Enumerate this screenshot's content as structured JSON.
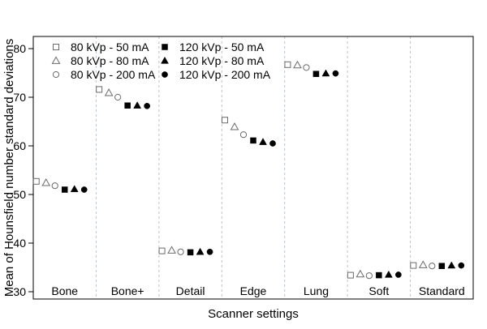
{
  "chart_data": {
    "type": "scatter",
    "xlabel": "Scanner settings",
    "ylabel": "Mean of Hounsfield number standard deviations",
    "ylim": [
      28.5,
      82.5
    ],
    "yticks": [
      30,
      40,
      50,
      60,
      70,
      80
    ],
    "categories": [
      "Bone",
      "Bone+",
      "Detail",
      "Edge",
      "Lung",
      "Soft",
      "Standard"
    ],
    "legend_position": "top-left",
    "series": [
      {
        "name": "80 kVp - 50 mA",
        "marker": "square-open",
        "values": [
          52.7,
          71.6,
          38.4,
          65.3,
          76.7,
          33.4,
          35.4
        ]
      },
      {
        "name": "80 kVp - 80 mA",
        "marker": "triangle-open",
        "values": [
          52.4,
          70.9,
          38.5,
          63.9,
          76.6,
          33.6,
          35.5
        ]
      },
      {
        "name": "80 kVp - 200 mA",
        "marker": "circle-open",
        "values": [
          51.8,
          70.0,
          38.2,
          62.3,
          76.1,
          33.3,
          35.3
        ]
      },
      {
        "name": "120 kVp - 50 mA",
        "marker": "square-filled",
        "values": [
          51.0,
          68.3,
          38.1,
          61.1,
          74.8,
          33.4,
          35.3
        ]
      },
      {
        "name": "120 kVp - 80 mA",
        "marker": "triangle-filled",
        "values": [
          51.1,
          68.3,
          38.2,
          60.8,
          74.9,
          33.5,
          35.4
        ]
      },
      {
        "name": "120 kVp - 200 mA",
        "marker": "circle-filled",
        "values": [
          51.0,
          68.2,
          38.2,
          60.5,
          74.9,
          33.5,
          35.4
        ]
      }
    ]
  }
}
